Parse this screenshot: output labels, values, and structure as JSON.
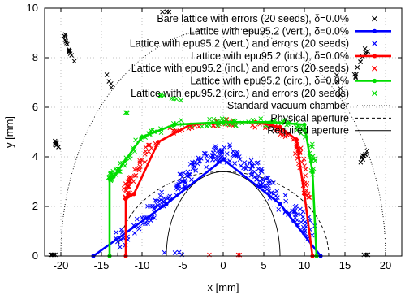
{
  "chart_data": {
    "type": "scatter",
    "xlabel": "x [mm]",
    "ylabel": "y [mm]",
    "xlim": [
      -22,
      22
    ],
    "ylim": [
      0,
      10
    ],
    "xticks": [
      -20,
      -15,
      -10,
      -5,
      0,
      5,
      10,
      15,
      20
    ],
    "yticks": [
      0,
      2,
      4,
      6,
      8,
      10
    ],
    "grid": true,
    "legend_position": "top-right",
    "legend": [
      {
        "label": "Bare lattice with errors (20 seeds), δ=0.0%",
        "color": "#000000",
        "style": "cross"
      },
      {
        "label": "Lattice with epu95.2 (vert.), δ=0.0%",
        "color": "#0000ff",
        "style": "line-points"
      },
      {
        "label": "Lattice with epu95.2 (vert.) and errors (20 seeds)",
        "color": "#0000ff",
        "style": "cross"
      },
      {
        "label": "Lattice with epu95.2 (incl.), δ=0.0%",
        "color": "#ff0000",
        "style": "line-points"
      },
      {
        "label": "Lattice with epu95.2 (incl.) and errors (20 seeds)",
        "color": "#ff0000",
        "style": "cross"
      },
      {
        "label": "Lattice with epu95.2 (circ.), δ=0.0%",
        "color": "#00dd00",
        "style": "line-points"
      },
      {
        "label": "Lattice with epu95.2 (circ.) and errors (20 seeds)",
        "color": "#00dd00",
        "style": "cross"
      },
      {
        "label": "Standard vacuum chamber",
        "color": "#000000",
        "style": "dotted"
      },
      {
        "label": "Physical aperture",
        "color": "#000000",
        "style": "dashed"
      },
      {
        "label": "Required aperture",
        "color": "#000000",
        "style": "solid"
      }
    ],
    "series": [
      {
        "name": "Lattice with epu95.2 (vert.), δ=0.0%",
        "color": "#0000ff",
        "x": [
          -16,
          -7,
          0,
          7,
          12
        ],
        "y": [
          0,
          2.1,
          3.9,
          2.1,
          0
        ]
      },
      {
        "name": "Lattice with epu95.2 (incl.), δ=0.0%",
        "color": "#ff0000",
        "x": [
          -12,
          -12,
          -11,
          -8,
          -4,
          0,
          4,
          7,
          9,
          10,
          11
        ],
        "y": [
          0,
          2.3,
          2.5,
          4.6,
          5.3,
          5.4,
          5.4,
          5.2,
          4.7,
          2.5,
          0
        ]
      },
      {
        "name": "Lattice with epu95.2 (circ.), δ=0.0%",
        "color": "#00dd00",
        "x": [
          -14,
          -14,
          -13.5,
          -10,
          -6,
          0,
          6,
          10,
          11,
          11.5
        ],
        "y": [
          0,
          3.1,
          3.2,
          4.8,
          5.3,
          5.4,
          5.4,
          5.3,
          3.4,
          0
        ]
      }
    ]
  }
}
